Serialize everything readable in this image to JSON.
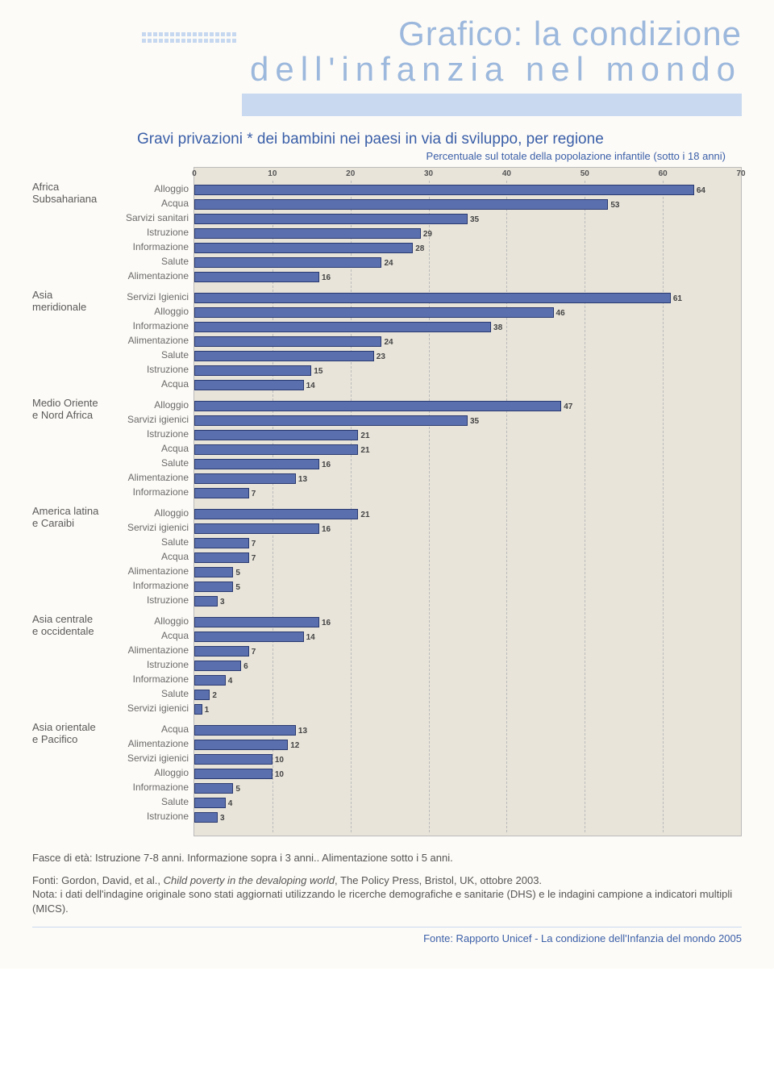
{
  "header": {
    "title_line1": "Grafico: la condizione",
    "title_line2": "dell'infanzia nel mondo"
  },
  "chart": {
    "title": "Gravi privazioni * dei bambini nei paesi in via di sviluppo, per regione",
    "subtitle": "Percentuale sul totale della popolazione infantile (sotto i 18 anni)",
    "type": "grouped-horizontal-bar",
    "xlim": [
      0,
      70
    ],
    "xtick_step": 10,
    "xticks": [
      0,
      10,
      20,
      30,
      40,
      50,
      60,
      70
    ],
    "bar_color": "#5a6fae",
    "bar_border": "#2a3a70",
    "background_color": "#e8e4da",
    "grid_color": "#bbbbbb",
    "value_fontsize": 10,
    "label_fontsize": 12,
    "region_fontsize": 13,
    "regions": [
      {
        "name_lines": [
          "Africa",
          "Subsahariana"
        ],
        "rows": [
          {
            "label": "Alloggio",
            "value": 64
          },
          {
            "label": "Acqua",
            "value": 53
          },
          {
            "label": "Sarvizi sanitari",
            "value": 35
          },
          {
            "label": "Istruzione",
            "value": 29
          },
          {
            "label": "Informazione",
            "value": 28
          },
          {
            "label": "Salute",
            "value": 24
          },
          {
            "label": "Alimentazione",
            "value": 16
          }
        ]
      },
      {
        "name_lines": [
          "Asia",
          "meridionale"
        ],
        "rows": [
          {
            "label": "Servizi Igienici",
            "value": 61
          },
          {
            "label": "Alloggio",
            "value": 46
          },
          {
            "label": "Informazione",
            "value": 38
          },
          {
            "label": "Alimentazione",
            "value": 24
          },
          {
            "label": "Salute",
            "value": 23
          },
          {
            "label": "Istruzione",
            "value": 15
          },
          {
            "label": "Acqua",
            "value": 14
          }
        ]
      },
      {
        "name_lines": [
          "Medio Oriente",
          "e Nord Africa"
        ],
        "rows": [
          {
            "label": "Alloggio",
            "value": 47
          },
          {
            "label": "Sarvizi igienici",
            "value": 35
          },
          {
            "label": "Istruzione",
            "value": 21
          },
          {
            "label": "Acqua",
            "value": 21
          },
          {
            "label": "Salute",
            "value": 16
          },
          {
            "label": "Alimentazione",
            "value": 13
          },
          {
            "label": "Informazione",
            "value": 7
          }
        ]
      },
      {
        "name_lines": [
          "America latina",
          "e Caraibi"
        ],
        "rows": [
          {
            "label": "Alloggio",
            "value": 21
          },
          {
            "label": "Servizi igienici",
            "value": 16
          },
          {
            "label": "Salute",
            "value": 7
          },
          {
            "label": "Acqua",
            "value": 7
          },
          {
            "label": "Alimentazione",
            "value": 5
          },
          {
            "label": "Informazione",
            "value": 5
          },
          {
            "label": "Istruzione",
            "value": 3
          }
        ]
      },
      {
        "name_lines": [
          "Asia centrale",
          "e occidentale"
        ],
        "rows": [
          {
            "label": "Alloggio",
            "value": 16
          },
          {
            "label": "Acqua",
            "value": 14
          },
          {
            "label": "Alimentazione",
            "value": 7
          },
          {
            "label": "Istruzione",
            "value": 6
          },
          {
            "label": "Informazione",
            "value": 4
          },
          {
            "label": "Salute",
            "value": 2
          },
          {
            "label": "Servizi igienici",
            "value": 1
          }
        ]
      },
      {
        "name_lines": [
          "Asia orientale",
          "e Pacifico"
        ],
        "rows": [
          {
            "label": "Acqua",
            "value": 13
          },
          {
            "label": "Alimentazione",
            "value": 12
          },
          {
            "label": "Servizi igienici",
            "value": 10
          },
          {
            "label": "Alloggio",
            "value": 10
          },
          {
            "label": "Informazione",
            "value": 5
          },
          {
            "label": "Salute",
            "value": 4
          },
          {
            "label": "Istruzione",
            "value": 3
          }
        ]
      }
    ]
  },
  "notes": {
    "age_note": "Fasce di età: Istruzione 7-8 anni. Informazione sopra i 3 anni.. Alimentazione sotto i 5 anni.",
    "source_line1": "Fonti: Gordon, David, et al., ",
    "source_italic": "Child poverty in the devaloping world",
    "source_line1_cont": ", The Policy Press, Bristol, UK, ottobre 2003.",
    "nota": "Nota: i dati dell'indagine originale sono stati aggiornati utilizzando le ricerche demografiche e sanitarie (DHS) e le indagini campione a indicatori multipli (MICS).",
    "footer_source": "Fonte: Rapporto Unicef - La condizione dell'Infanzia del mondo 2005"
  }
}
